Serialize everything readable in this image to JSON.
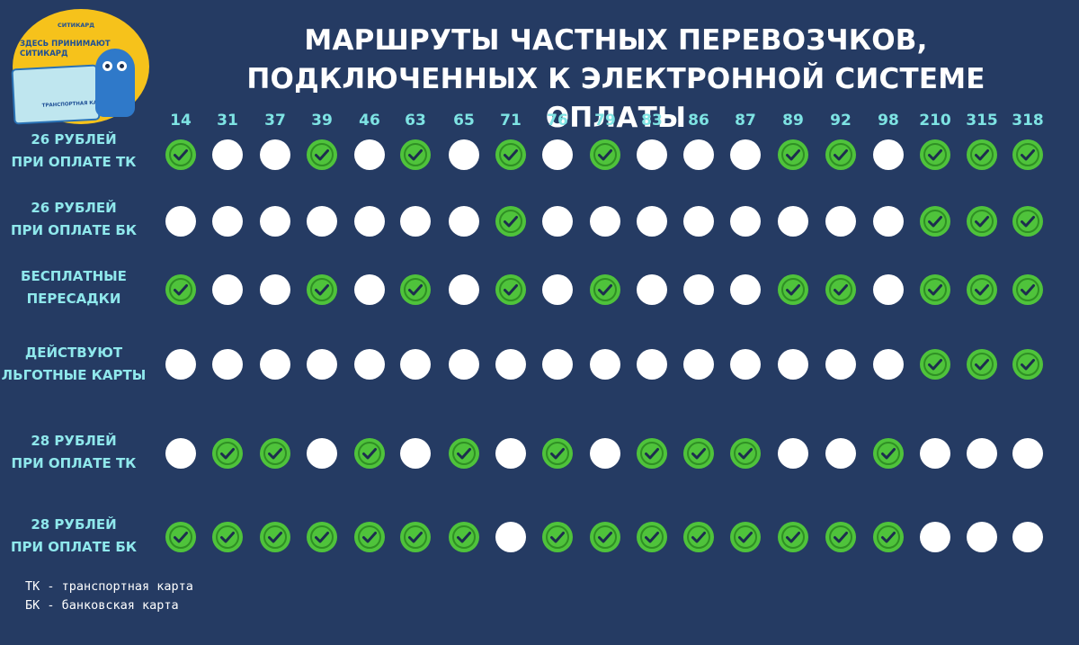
{
  "title": {
    "line1": "МАРШРУТЫ ЧАСТНЫХ ПЕРЕВОЗЧКОВ,",
    "line2": "ПОДКЛЮЧЕННЫХ К ЭЛЕКТРОННОЙ СИСТЕМЕ ОПЛАТЫ"
  },
  "logo": {
    "brand": "СИТИКАРД",
    "line1": "ЗДЕСЬ ПРИНИМАЮТ",
    "line2": "СИТИКАРД",
    "card_text": "ТРАНСПОРТНАЯ КАРТ"
  },
  "routes": [
    "14",
    "31",
    "37",
    "39",
    "46",
    "63",
    "65",
    "71",
    "76",
    "79",
    "83",
    "86",
    "87",
    "89",
    "92",
    "98",
    "210",
    "315",
    "318"
  ],
  "rows": [
    {
      "line1": "26 РУБЛЕЙ",
      "line2": "ПРИ ОПЛАТЕ ТК",
      "checks": [
        1,
        0,
        0,
        1,
        0,
        1,
        0,
        1,
        0,
        1,
        0,
        0,
        0,
        1,
        1,
        0,
        1,
        1,
        1
      ]
    },
    {
      "line1": "26 РУБЛЕЙ",
      "line2": "ПРИ ОПЛАТЕ БК",
      "checks": [
        0,
        0,
        0,
        0,
        0,
        0,
        0,
        1,
        0,
        0,
        0,
        0,
        0,
        0,
        0,
        0,
        1,
        1,
        1
      ]
    },
    {
      "line1": "БЕСПЛАТНЫЕ",
      "line2": "ПЕРЕСАДКИ",
      "checks": [
        1,
        0,
        0,
        1,
        0,
        1,
        0,
        1,
        0,
        1,
        0,
        0,
        0,
        1,
        1,
        0,
        1,
        1,
        1
      ]
    },
    {
      "line1": "ДЕЙСТВУЮТ",
      "line2": "ЛЬГОТНЫЕ КАРТЫ",
      "checks": [
        0,
        0,
        0,
        0,
        0,
        0,
        0,
        0,
        0,
        0,
        0,
        0,
        0,
        0,
        0,
        0,
        1,
        1,
        1
      ]
    },
    {
      "line1": "28 РУБЛЕЙ",
      "line2": "ПРИ ОПЛАТЕ ТК",
      "checks": [
        0,
        1,
        1,
        0,
        1,
        0,
        1,
        0,
        1,
        0,
        1,
        1,
        1,
        0,
        0,
        1,
        0,
        0,
        0
      ]
    },
    {
      "line1": "28 РУБЛЕЙ",
      "line2": "ПРИ ОПЛАТЕ БК",
      "checks": [
        1,
        1,
        1,
        1,
        1,
        1,
        1,
        0,
        1,
        1,
        1,
        1,
        1,
        1,
        1,
        1,
        0,
        0,
        0
      ]
    }
  ],
  "legend": {
    "tk": "ТК - транспортная карта",
    "bk": "БК - банковская карта"
  },
  "colors": {
    "background": "#253b63",
    "check_fill": "#4fc33b",
    "empty_fill": "#ffffff",
    "route_text": "#7ee3e3",
    "label_text": "#8fe8ec"
  }
}
